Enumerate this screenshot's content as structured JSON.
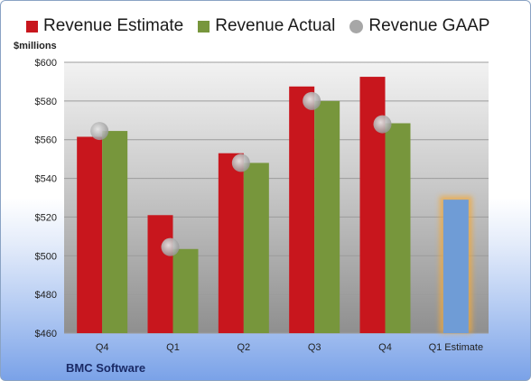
{
  "chart_data": {
    "type": "bar",
    "ylabel": "$millions",
    "ylim": [
      460,
      600
    ],
    "yticks": [
      "$460",
      "$480",
      "$500",
      "$520",
      "$540",
      "$560",
      "$580",
      "$600"
    ],
    "categories": [
      "Q4",
      "Q1",
      "Q2",
      "Q3",
      "Q4",
      "Q1 Estimate"
    ],
    "series": [
      {
        "name": "Revenue Estimate",
        "color": "#c8161d",
        "values": [
          561.5,
          521,
          553,
          587.5,
          592.5,
          null
        ]
      },
      {
        "name": "Revenue Actual",
        "color": "#77963c",
        "values": [
          564.5,
          503.5,
          548,
          580,
          568.5,
          null
        ]
      },
      {
        "name": "Revenue GAAP",
        "color": "#a7a7a7",
        "kind": "marker",
        "values": [
          564.5,
          504.5,
          548,
          580,
          568,
          null
        ]
      },
      {
        "name": "",
        "color": "#6f9cd6",
        "values": [
          null,
          null,
          null,
          null,
          null,
          529
        ]
      }
    ],
    "grid": true,
    "legend": "top"
  },
  "footer": {
    "company": "BMC Software"
  }
}
